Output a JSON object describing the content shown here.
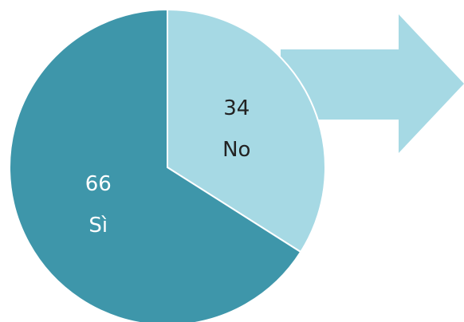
{
  "chart_data": {
    "type": "pie",
    "categories": [
      "No",
      "Sì"
    ],
    "values": [
      34,
      66
    ],
    "colors": [
      "#a6d9e4",
      "#3e96aa"
    ],
    "label_colors": [
      "#222222",
      "#ffffff"
    ]
  }
}
